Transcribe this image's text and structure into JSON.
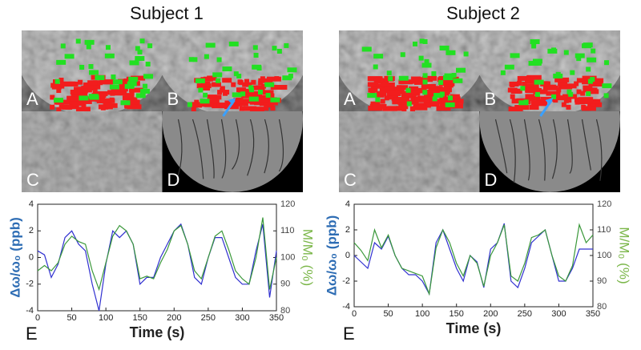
{
  "panels": [
    {
      "title": "Subject 1",
      "images": [
        "A",
        "B",
        "C",
        "D"
      ],
      "chart_label": "E"
    },
    {
      "title": "Subject 2",
      "images": [
        "A",
        "B",
        "C",
        "D"
      ],
      "chart_label": "E"
    }
  ],
  "chart_data": [
    {
      "type": "line",
      "xlabel": "Time (s)",
      "ylabel": "Δω/ω₀ (ppb)",
      "y2label": "M/M₀ (%)",
      "x": [
        0,
        10,
        20,
        30,
        40,
        50,
        60,
        70,
        80,
        90,
        100,
        110,
        120,
        130,
        140,
        150,
        160,
        170,
        180,
        190,
        200,
        210,
        220,
        230,
        240,
        250,
        260,
        270,
        280,
        290,
        300,
        310,
        320,
        330,
        340,
        350
      ],
      "series": [
        {
          "color": "#3030d0",
          "values": [
            0.5,
            0.2,
            -1.5,
            -0.5,
            1.5,
            2,
            1,
            0.5,
            -2,
            -4,
            -0.5,
            2,
            1.5,
            2,
            1,
            -2,
            -1.5,
            -1.5,
            0,
            1,
            2,
            2.5,
            1,
            -1.5,
            -2,
            0,
            1.5,
            1.5,
            0,
            -1.5,
            -2,
            -2,
            0.5,
            2.5,
            -3,
            0.5
          ]
        },
        {
          "color": "#3a983a",
          "axis": "y2",
          "values": [
            95,
            97,
            95,
            98,
            105,
            108,
            106,
            105,
            95,
            88,
            98,
            108,
            112,
            110,
            105,
            92,
            93,
            92,
            98,
            103,
            110,
            112,
            105,
            95,
            92,
            100,
            108,
            110,
            103,
            95,
            92,
            90,
            100,
            115,
            88,
            100
          ]
        }
      ],
      "xlim": [
        0,
        350
      ],
      "xticks": [
        0,
        50,
        100,
        150,
        200,
        250,
        300,
        350
      ],
      "ylim": [
        -4,
        4
      ],
      "yticks": [
        -4,
        -2,
        0,
        2,
        4
      ],
      "y2lim": [
        80,
        120
      ],
      "y2ticks": [
        80,
        90,
        100,
        110,
        120
      ],
      "ylabel_color": "#2e6db4",
      "y2label_color": "#7ab648"
    },
    {
      "type": "line",
      "xlabel": "Time (s)",
      "ylabel": "Δω/ω₀ (ppb)",
      "y2label": "M/M₀ (%)",
      "x": [
        0,
        10,
        20,
        30,
        40,
        50,
        60,
        70,
        80,
        90,
        100,
        110,
        120,
        130,
        140,
        150,
        160,
        170,
        180,
        190,
        200,
        210,
        220,
        230,
        240,
        250,
        260,
        270,
        280,
        290,
        300,
        310,
        320,
        330,
        340,
        350
      ],
      "series": [
        {
          "color": "#3030d0",
          "values": [
            0,
            -0.5,
            -1,
            1,
            0.5,
            1.5,
            0,
            -1,
            -1.5,
            -1.5,
            -2,
            -3,
            1,
            2,
            0.5,
            -1,
            -2,
            0,
            -0.5,
            -2.5,
            0.5,
            1,
            2.5,
            -2,
            -2.5,
            -1,
            1,
            1.5,
            2,
            0,
            -2,
            -2,
            -1,
            0.5,
            0.5,
            0.5
          ]
        },
        {
          "color": "#3a983a",
          "axis": "y2",
          "values": [
            105,
            102,
            98,
            110,
            103,
            108,
            100,
            95,
            94,
            93,
            92,
            85,
            103,
            110,
            105,
            97,
            92,
            100,
            97,
            88,
            100,
            105,
            112,
            92,
            90,
            97,
            107,
            108,
            110,
            100,
            92,
            90,
            96,
            112,
            105,
            108
          ]
        }
      ],
      "xlim": [
        0,
        350
      ],
      "xticks": [
        0,
        50,
        100,
        150,
        200,
        250,
        300,
        350
      ],
      "ylim": [
        -4,
        4
      ],
      "yticks": [
        -4,
        -2,
        0,
        2,
        4
      ],
      "y2lim": [
        80,
        120
      ],
      "y2ticks": [
        80,
        90,
        100,
        110,
        120
      ],
      "ylabel_color": "#2e6db4",
      "y2label_color": "#7ab648"
    }
  ]
}
